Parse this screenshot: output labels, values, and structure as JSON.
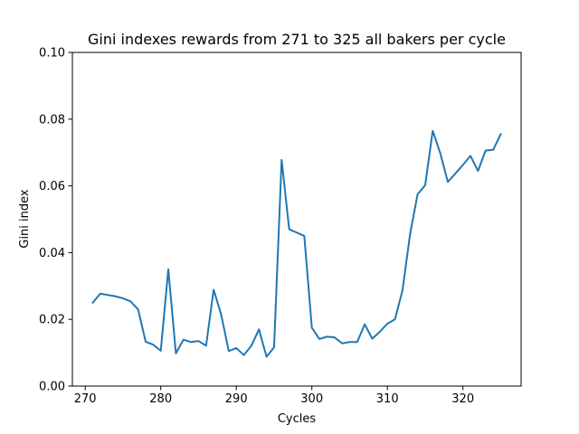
{
  "chart_data": {
    "type": "line",
    "title": "Gini indexes rewards from 271 to 325 all bakers per cycle",
    "xlabel": "Cycles",
    "ylabel": "Gini index",
    "xlim": [
      268.3,
      327.7
    ],
    "ylim": [
      0.0,
      0.1
    ],
    "xticks": [
      270,
      280,
      290,
      300,
      310,
      320
    ],
    "yticks": [
      0.0,
      0.02,
      0.04,
      0.06,
      0.08,
      0.1
    ],
    "xtick_labels": [
      "270",
      "280",
      "290",
      "300",
      "310",
      "320"
    ],
    "ytick_labels": [
      "0.00",
      "0.02",
      "0.04",
      "0.06",
      "0.08",
      "0.10"
    ],
    "grid": false,
    "series": [
      {
        "color": "#1f77b4",
        "x": [
          271,
          272,
          273,
          274,
          275,
          276,
          277,
          278,
          279,
          280,
          281,
          282,
          283,
          284,
          285,
          286,
          287,
          288,
          289,
          290,
          291,
          292,
          293,
          294,
          295,
          296,
          297,
          298,
          299,
          300,
          301,
          302,
          303,
          304,
          305,
          306,
          307,
          308,
          309,
          310,
          311,
          312,
          313,
          314,
          315,
          316,
          317,
          318,
          319,
          320,
          321,
          322,
          323,
          324,
          325
        ],
        "y": [
          0.025,
          0.0277,
          0.0273,
          0.0269,
          0.0263,
          0.0254,
          0.023,
          0.0133,
          0.0124,
          0.0106,
          0.035,
          0.0098,
          0.0139,
          0.0132,
          0.0135,
          0.0121,
          0.0289,
          0.0214,
          0.0105,
          0.0114,
          0.0093,
          0.0121,
          0.017,
          0.0088,
          0.0116,
          0.0678,
          0.047,
          0.046,
          0.045,
          0.0175,
          0.0141,
          0.0148,
          0.0146,
          0.0128,
          0.0132,
          0.0132,
          0.0185,
          0.0142,
          0.0163,
          0.0187,
          0.02,
          0.0287,
          0.0455,
          0.0575,
          0.0602,
          0.0765,
          0.0698,
          0.0612,
          0.0637,
          0.0663,
          0.069,
          0.0645,
          0.0706,
          0.0708,
          0.0755
        ]
      }
    ]
  }
}
